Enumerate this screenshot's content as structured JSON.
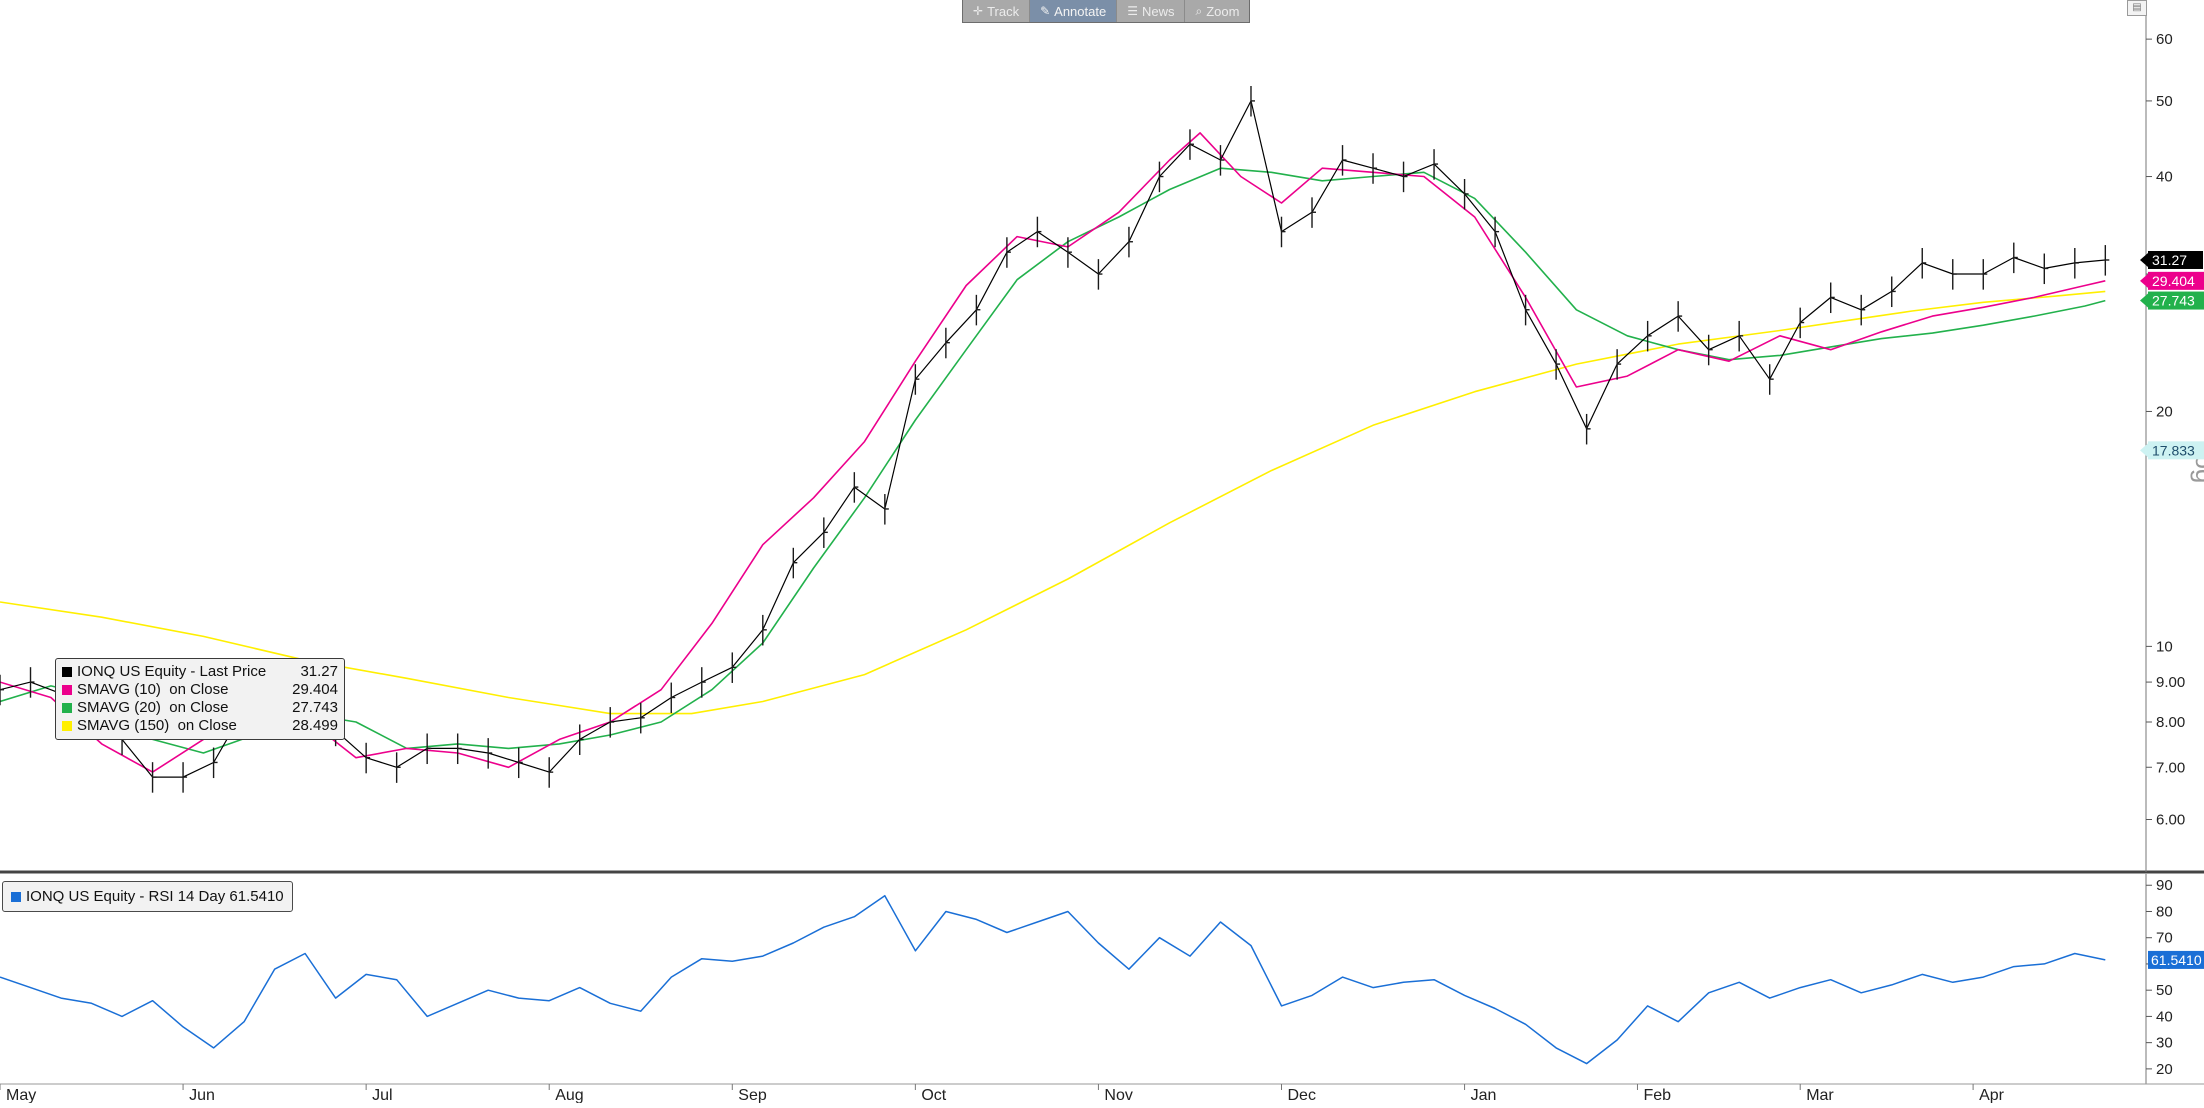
{
  "toolbar": {
    "track": "Track",
    "annotate": "Annotate",
    "news": "News",
    "zoom": "Zoom"
  },
  "scale_label": "Log",
  "legend": {
    "price": {
      "name": "IONQ US Equity - Last Price",
      "value": "31.27",
      "color": "#000000"
    },
    "sma10": {
      "name": "SMAVG (10)  on Close",
      "value": "29.404",
      "color": "#ec008c"
    },
    "sma20": {
      "name": "SMAVG (20)  on Close",
      "value": "27.743",
      "color": "#22b14c"
    },
    "sma150": {
      "name": "SMAVG (150)  on Close",
      "value": "28.499",
      "color": "#ffef00"
    }
  },
  "rsi_legend": {
    "name": "IONQ US Equity - RSI 14 Day",
    "value": "61.5410",
    "color": "#1a6fd6"
  },
  "chart_data": {
    "type": "line",
    "price_panel": {
      "scale": "log",
      "ylim": [
        5.2,
        65
      ],
      "y_ticks": [
        6,
        7,
        8,
        9,
        10,
        20,
        30,
        40,
        50,
        60
      ],
      "y_tick_labels": [
        "6.00",
        "7.00",
        "8.00",
        "9.00",
        "10",
        "20",
        "",
        "40",
        "50",
        "60"
      ],
      "last_value_tags": [
        {
          "value": 31.27,
          "label": "31.27",
          "color": "#000000",
          "text_color": "#ffffff"
        },
        {
          "value": 29.404,
          "label": "29.404",
          "color": "#ec008c",
          "text_color": "#ffffff"
        },
        {
          "value": 27.743,
          "label": "27.743",
          "color": "#22b14c",
          "text_color": "#ffffff"
        },
        {
          "value": 17.833,
          "label": "17.833",
          "color": "#cdf2f2",
          "text_color": "#1e4d6b"
        }
      ],
      "ohlc_colors": {
        "bars": "#1a1a1a"
      },
      "series": [
        {
          "name": "SMAVG (150)  on Close",
          "color": "#ffef00",
          "x": [
            0,
            10,
            20,
            30,
            40,
            50,
            55,
            60,
            68,
            75,
            85,
            95,
            105,
            115,
            125,
            135,
            145,
            155,
            165,
            175,
            182,
            188,
            195,
            202,
            207
          ],
          "values": [
            11.4,
            10.9,
            10.3,
            9.6,
            9.1,
            8.6,
            8.4,
            8.2,
            8.2,
            8.5,
            9.2,
            10.5,
            12.2,
            14.4,
            16.8,
            19.2,
            21.2,
            23.0,
            24.4,
            25.4,
            26.2,
            26.9,
            27.6,
            28.1,
            28.499
          ]
        },
        {
          "name": "SMAVG (20)  on Close",
          "color": "#22b14c",
          "x": [
            0,
            5,
            10,
            15,
            20,
            25,
            30,
            35,
            40,
            45,
            50,
            55,
            60,
            65,
            70,
            75,
            80,
            85,
            90,
            95,
            100,
            105,
            110,
            115,
            120,
            125,
            130,
            135,
            140,
            145,
            150,
            155,
            160,
            165,
            170,
            175,
            180,
            185,
            190,
            195,
            200,
            205,
            207
          ],
          "values": [
            8.5,
            8.9,
            8.6,
            7.6,
            7.3,
            7.7,
            8.2,
            8.0,
            7.4,
            7.5,
            7.4,
            7.5,
            7.7,
            8.0,
            8.8,
            10.1,
            12.6,
            15.5,
            19.5,
            24.0,
            29.5,
            33.0,
            35.5,
            38.5,
            41.0,
            40.5,
            39.5,
            40.0,
            40.5,
            37.5,
            32.0,
            27.0,
            25.0,
            24.0,
            23.3,
            23.6,
            24.2,
            24.8,
            25.2,
            25.8,
            26.5,
            27.3,
            27.743
          ]
        },
        {
          "name": "SMAVG (10)  on Close",
          "color": "#ec008c",
          "x": [
            0,
            5,
            10,
            15,
            20,
            25,
            30,
            35,
            40,
            45,
            50,
            55,
            60,
            65,
            70,
            75,
            80,
            85,
            90,
            95,
            100,
            105,
            110,
            115,
            118,
            122,
            126,
            130,
            135,
            140,
            145,
            150,
            155,
            160,
            165,
            170,
            175,
            180,
            185,
            190,
            195,
            200,
            205,
            207
          ],
          "values": [
            9.0,
            8.6,
            7.5,
            6.9,
            7.6,
            8.4,
            8.1,
            7.2,
            7.4,
            7.3,
            7.0,
            7.6,
            8.0,
            8.8,
            10.7,
            13.5,
            15.5,
            18.3,
            23.2,
            29.0,
            33.5,
            32.5,
            36.0,
            42.0,
            45.5,
            40.0,
            37.0,
            41.0,
            40.5,
            40.0,
            35.5,
            28.0,
            21.5,
            22.2,
            24.0,
            23.2,
            25.0,
            24.0,
            25.3,
            26.5,
            27.2,
            28.0,
            29.0,
            29.404
          ]
        },
        {
          "name": "IONQ US Equity - Last Price",
          "color": "#000000",
          "x": [
            0,
            3,
            6,
            9,
            12,
            15,
            18,
            21,
            24,
            27,
            30,
            33,
            36,
            39,
            42,
            45,
            48,
            51,
            54,
            57,
            60,
            63,
            66,
            69,
            72,
            75,
            78,
            81,
            84,
            87,
            90,
            93,
            96,
            99,
            102,
            105,
            108,
            111,
            114,
            117,
            120,
            123,
            126,
            129,
            132,
            135,
            138,
            141,
            144,
            147,
            150,
            153,
            156,
            159,
            162,
            165,
            168,
            171,
            174,
            177,
            180,
            183,
            186,
            189,
            192,
            195,
            198,
            201,
            204,
            207
          ],
          "values": [
            8.8,
            9.0,
            8.7,
            8.3,
            7.6,
            6.8,
            6.8,
            7.1,
            8.3,
            9.0,
            8.1,
            7.8,
            7.2,
            7.0,
            7.4,
            7.4,
            7.3,
            7.1,
            6.9,
            7.6,
            8.0,
            8.1,
            8.6,
            9.0,
            9.4,
            10.5,
            12.8,
            14.0,
            16.0,
            15.0,
            22.0,
            24.5,
            27.0,
            32.0,
            34.0,
            32.0,
            30.0,
            33.0,
            40.0,
            44.0,
            42.0,
            50.0,
            34.0,
            36.0,
            42.0,
            41.0,
            40.0,
            41.5,
            38.0,
            34.0,
            27.0,
            23.0,
            19.0,
            23.0,
            25.0,
            26.5,
            24.0,
            25.0,
            22.0,
            26.0,
            28.0,
            27.0,
            28.5,
            31.0,
            30.0,
            30.0,
            31.5,
            30.5,
            31.0,
            31.27
          ]
        }
      ]
    },
    "rsi_panel": {
      "ylim": [
        15,
        92
      ],
      "y_ticks": [
        20,
        30,
        40,
        50,
        60,
        70,
        80,
        90
      ],
      "series": [
        {
          "name": "IONQ US Equity - RSI 14 Day",
          "color": "#1a6fd6",
          "x": [
            0,
            3,
            6,
            9,
            12,
            15,
            18,
            21,
            24,
            27,
            30,
            33,
            36,
            39,
            42,
            45,
            48,
            51,
            54,
            57,
            60,
            63,
            66,
            69,
            72,
            75,
            78,
            81,
            84,
            87,
            90,
            93,
            96,
            99,
            102,
            105,
            108,
            111,
            114,
            117,
            120,
            123,
            126,
            129,
            132,
            135,
            138,
            141,
            144,
            147,
            150,
            153,
            156,
            159,
            162,
            165,
            168,
            171,
            174,
            177,
            180,
            183,
            186,
            189,
            192,
            195,
            198,
            201,
            204,
            207
          ],
          "values": [
            55,
            51,
            47,
            45,
            40,
            46,
            36,
            28,
            38,
            58,
            64,
            47,
            56,
            54,
            40,
            45,
            50,
            47,
            46,
            51,
            45,
            42,
            55,
            62,
            61,
            63,
            68,
            74,
            78,
            86,
            65,
            80,
            77,
            72,
            76,
            80,
            68,
            58,
            70,
            63,
            76,
            67,
            44,
            48,
            55,
            51,
            53,
            54,
            48,
            43,
            37,
            28,
            22,
            31,
            44,
            38,
            49,
            53,
            47,
            51,
            54,
            49,
            52,
            56,
            53,
            55,
            59,
            60,
            64,
            61.541
          ]
        }
      ]
    },
    "x_axis": {
      "categories": [
        "May",
        "Jun",
        "Jul",
        "Aug",
        "Sep",
        "Oct",
        "Nov",
        "Dec",
        "Jan",
        "Feb",
        "Mar",
        "Apr"
      ],
      "positions": [
        0,
        18,
        36,
        54,
        72,
        90,
        108,
        126,
        144,
        161,
        177,
        194
      ],
      "xlim": [
        0,
        211
      ]
    }
  }
}
